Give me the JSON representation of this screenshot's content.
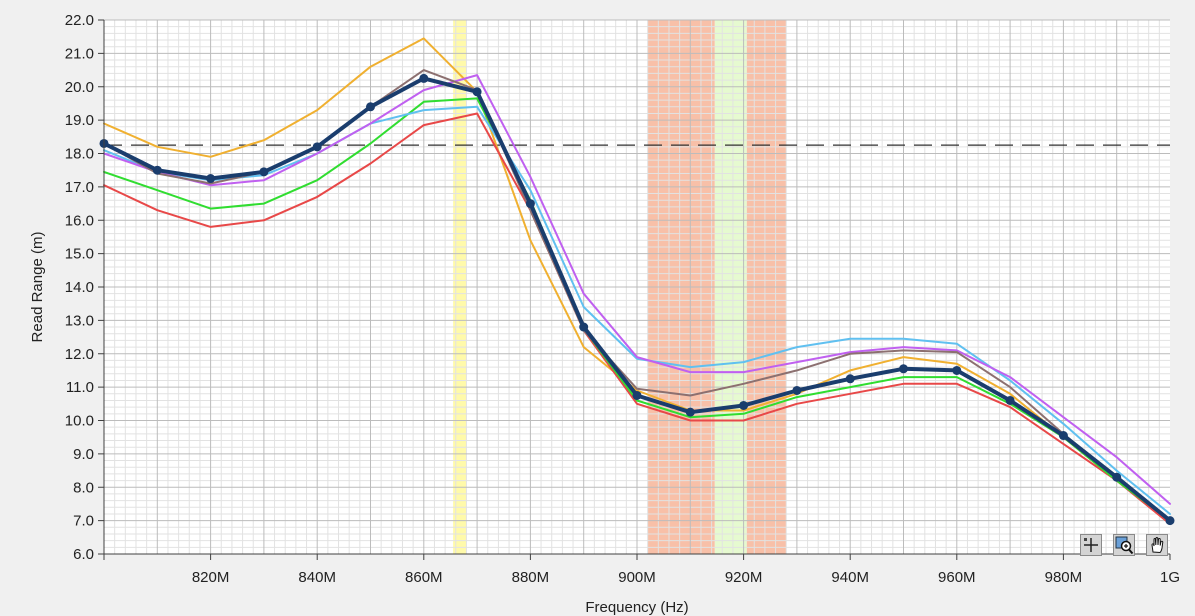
{
  "chart_data": {
    "type": "line",
    "xlabel": "Frequency (Hz)",
    "ylabel": "Read Range (m)",
    "xlim": [
      800,
      1000
    ],
    "ylim": [
      6.0,
      22.0
    ],
    "x_ticks": [
      {
        "value": 820,
        "label": "820M"
      },
      {
        "value": 840,
        "label": "840M"
      },
      {
        "value": 860,
        "label": "860M"
      },
      {
        "value": 880,
        "label": "880M"
      },
      {
        "value": 900,
        "label": "900M"
      },
      {
        "value": 920,
        "label": "920M"
      },
      {
        "value": 940,
        "label": "940M"
      },
      {
        "value": 960,
        "label": "960M"
      },
      {
        "value": 980,
        "label": "980M"
      },
      {
        "value": 1000,
        "label": "1G"
      }
    ],
    "y_ticks": [
      {
        "value": 6.0,
        "label": "6.0"
      },
      {
        "value": 7.0,
        "label": "7.0"
      },
      {
        "value": 8.0,
        "label": "8.0"
      },
      {
        "value": 9.0,
        "label": "9.0"
      },
      {
        "value": 10.0,
        "label": "10.0"
      },
      {
        "value": 11.0,
        "label": "11.0"
      },
      {
        "value": 12.0,
        "label": "12.0"
      },
      {
        "value": 13.0,
        "label": "13.0"
      },
      {
        "value": 14.0,
        "label": "14.0"
      },
      {
        "value": 15.0,
        "label": "15.0"
      },
      {
        "value": 16.0,
        "label": "16.0"
      },
      {
        "value": 17.0,
        "label": "17.0"
      },
      {
        "value": 18.0,
        "label": "18.0"
      },
      {
        "value": 19.0,
        "label": "19.0"
      },
      {
        "value": 20.0,
        "label": "20.0"
      },
      {
        "value": 21.0,
        "label": "21.0"
      },
      {
        "value": 22.0,
        "label": "22.0"
      }
    ],
    "grid": true,
    "minor_grid": true,
    "x": [
      800,
      810,
      820,
      830,
      840,
      850,
      860,
      870,
      880,
      890,
      900,
      910,
      920,
      930,
      940,
      950,
      960,
      970,
      980,
      990,
      1000
    ],
    "series": [
      {
        "color": "#f0b030",
        "width": 2,
        "markers": false,
        "values": [
          18.9,
          18.2,
          17.9,
          18.4,
          19.3,
          20.6,
          21.45,
          19.85,
          15.4,
          12.2,
          10.9,
          10.3,
          10.3,
          10.8,
          11.5,
          11.9,
          11.7,
          10.8,
          9.5,
          8.2,
          7.0
        ]
      },
      {
        "color": "#e84848",
        "width": 2,
        "markers": false,
        "values": [
          17.05,
          16.3,
          15.8,
          16.0,
          16.7,
          17.7,
          18.85,
          19.2,
          16.3,
          12.7,
          10.5,
          10.0,
          10.0,
          10.5,
          10.8,
          11.1,
          11.1,
          10.4,
          9.3,
          8.2,
          6.9
        ]
      },
      {
        "color": "#30dd30",
        "width": 2,
        "markers": false,
        "values": [
          17.45,
          16.9,
          16.35,
          16.5,
          17.2,
          18.3,
          19.55,
          19.65,
          16.6,
          12.75,
          10.6,
          10.1,
          10.2,
          10.7,
          11.0,
          11.3,
          11.3,
          10.5,
          9.5,
          8.2,
          7.0
        ]
      },
      {
        "color": "#60c0f0",
        "width": 2,
        "markers": false,
        "values": [
          18.1,
          17.45,
          17.2,
          17.35,
          18.0,
          18.9,
          19.3,
          19.4,
          16.9,
          13.4,
          11.85,
          11.6,
          11.75,
          12.2,
          12.45,
          12.45,
          12.3,
          11.2,
          9.9,
          8.5,
          7.2
        ]
      },
      {
        "color": "#c060f0",
        "width": 2,
        "markers": false,
        "values": [
          18.0,
          17.45,
          17.05,
          17.2,
          18.0,
          18.9,
          19.9,
          20.35,
          17.3,
          13.8,
          11.9,
          11.45,
          11.45,
          11.75,
          12.05,
          12.2,
          12.1,
          11.3,
          10.1,
          8.9,
          7.5
        ]
      },
      {
        "color": "#8c7070",
        "width": 2,
        "markers": false,
        "values": [
          18.3,
          17.4,
          17.1,
          17.45,
          18.2,
          19.4,
          20.5,
          19.9,
          16.3,
          12.7,
          10.95,
          10.75,
          11.1,
          11.5,
          12.0,
          12.1,
          12.05,
          11.0,
          9.6,
          8.3,
          7.0
        ]
      },
      {
        "color": "#1a3d6d",
        "width": 4,
        "markers": true,
        "values": [
          18.3,
          17.5,
          17.25,
          17.45,
          18.2,
          19.4,
          20.25,
          19.85,
          16.5,
          12.8,
          10.75,
          10.25,
          10.45,
          10.9,
          11.25,
          11.55,
          11.5,
          10.6,
          9.55,
          8.3,
          7.0
        ]
      }
    ],
    "reference_lines": [
      {
        "orientation": "horizontal",
        "value": 18.25,
        "style": "dashed",
        "color": "#303030"
      }
    ],
    "bands": [
      {
        "from": 865.5,
        "to": 868.0,
        "color": "#fffaaa"
      },
      {
        "from": 902.0,
        "to": 914.6,
        "color": "#f8c0a8"
      },
      {
        "from": 914.6,
        "to": 920.6,
        "color": "#e6fad0"
      },
      {
        "from": 920.6,
        "to": 928.0,
        "color": "#f8c0a8"
      }
    ]
  },
  "palette": {
    "background": "#f0f0f0",
    "plot_background": "#ffffff",
    "major_grid": "#bcbcbc",
    "minor_grid": "#e2e2e2",
    "axis": "#404040",
    "tick_label": "#222222"
  },
  "toolbar": {
    "buttons": [
      {
        "name": "cursor-tool-button",
        "icon": "crosshair-icon"
      },
      {
        "name": "zoom-tool-button",
        "icon": "zoom-icon"
      },
      {
        "name": "pan-tool-button",
        "icon": "hand-icon"
      }
    ]
  }
}
